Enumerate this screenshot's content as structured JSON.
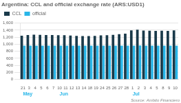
{
  "chart_data": {
    "type": "bar",
    "title": "Argentina: CCL and official exchange rate (ARS:USD1)",
    "source": "Source: Ambito Financiero",
    "categories": [
      "21",
      "3",
      "4",
      "5",
      "6",
      "7",
      "10",
      "11",
      "12",
      "13",
      "14",
      "18",
      "19",
      "24",
      "25",
      "26",
      "27",
      "28",
      "1",
      "2",
      "3",
      "4",
      "5",
      "8",
      "9",
      "10"
    ],
    "series": [
      {
        "name": "CCL",
        "color": "#1a3a4a",
        "values": [
          1240,
          1260,
          1270,
          1265,
          1262,
          1260,
          1258,
          1255,
          1248,
          1238,
          1232,
          1230,
          1235,
          1250,
          1258,
          1268,
          1285,
          1300,
          1395,
          1410,
          1390,
          1385,
          1380,
          1385,
          1380,
          1395
        ]
      },
      {
        "name": "official",
        "color": "#29b6e8",
        "values": [
          960,
          960,
          958,
          958,
          958,
          958,
          958,
          958,
          958,
          958,
          958,
          958,
          958,
          958,
          958,
          958,
          958,
          958,
          960,
          965,
          962,
          960,
          958,
          958,
          960,
          962
        ]
      }
    ],
    "annotations": [
      {
        "text": "May",
        "category_index": 0
      },
      {
        "text": "Jun",
        "category_index": 6
      },
      {
        "text": "Jul",
        "category_index": 18
      }
    ],
    "ylim": [
      0,
      1600
    ],
    "yticks": [
      0,
      200,
      400,
      600,
      800,
      {
        "value": 1000,
        "label": "1,000"
      },
      {
        "value": 1200,
        "label": "1,200"
      },
      {
        "value": 1400,
        "label": "1,400"
      },
      {
        "value": 1600,
        "label": "1,600"
      }
    ],
    "grid": true,
    "legend": "upper left"
  }
}
